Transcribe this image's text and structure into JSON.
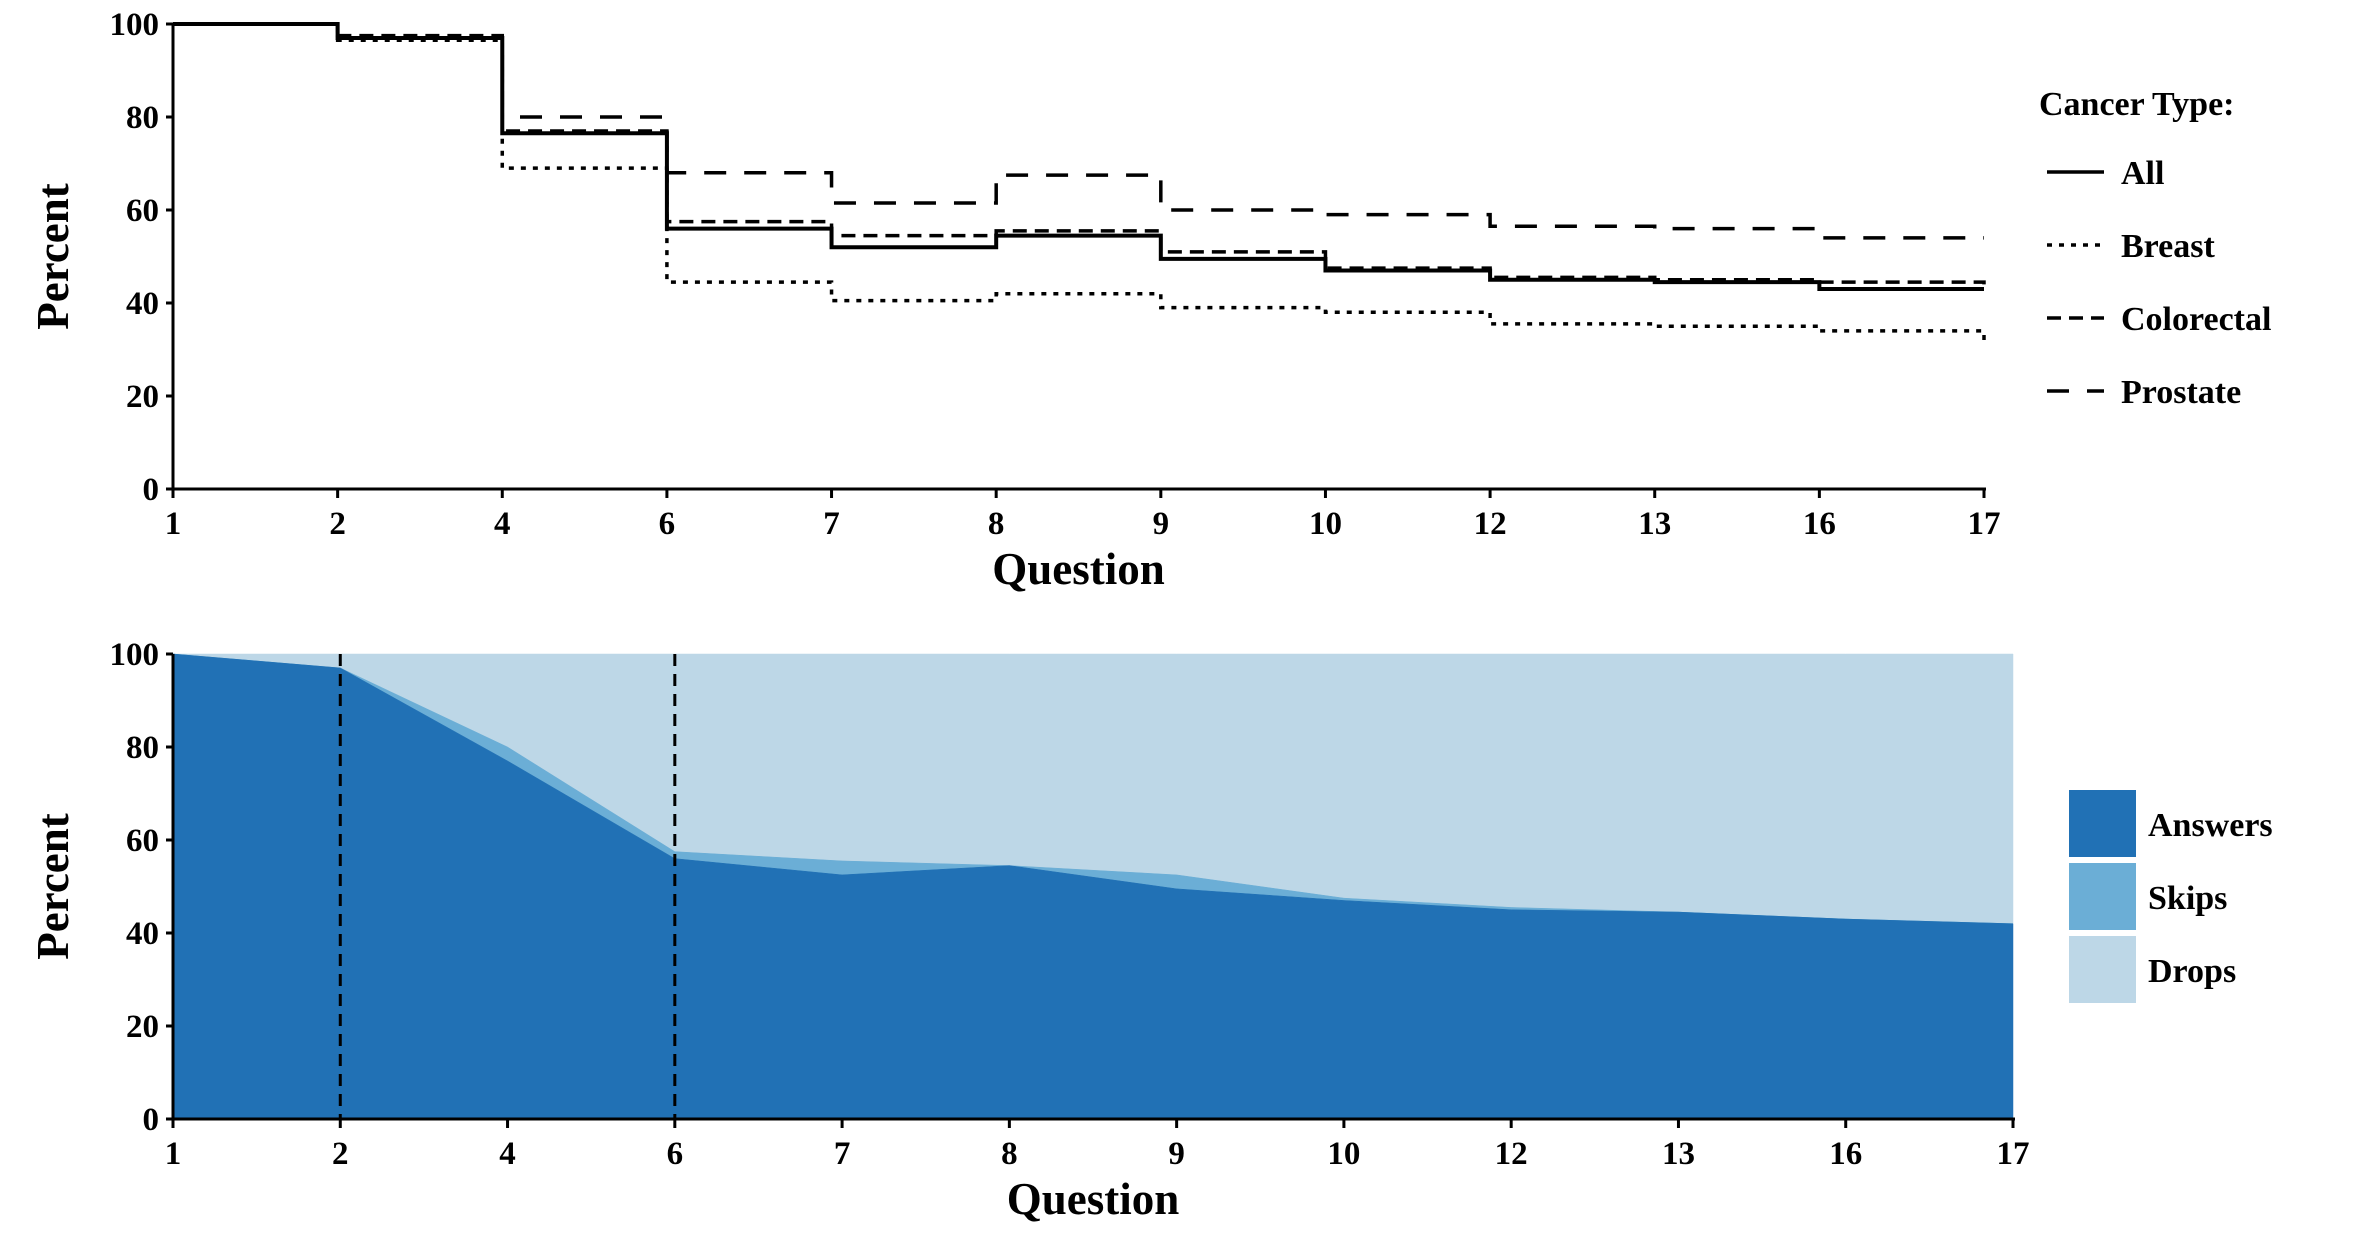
{
  "chart_data": [
    {
      "type": "line",
      "step": true,
      "xlabel": "Question",
      "ylabel": "Percent",
      "categories": [
        "1",
        "2",
        "4",
        "6",
        "7",
        "8",
        "9",
        "10",
        "12",
        "13",
        "16",
        "17"
      ],
      "ylim": [
        0,
        100
      ],
      "yticks": [
        "0",
        "20",
        "40",
        "60",
        "80",
        "100"
      ],
      "legend_title": "Cancer Type:",
      "legend_position": "right",
      "series": [
        {
          "name": "All",
          "dash": "solid",
          "values": [
            100,
            97,
            76.5,
            56,
            52,
            54.5,
            49.5,
            47,
            45,
            44.5,
            43,
            43
          ]
        },
        {
          "name": "Breast",
          "dash": "dotted",
          "values": [
            100,
            96.5,
            69,
            44.5,
            40.5,
            42,
            39,
            38,
            35.5,
            35,
            34,
            32
          ]
        },
        {
          "name": "Colorectal",
          "dash": "dashed",
          "values": [
            100,
            97.5,
            77,
            57.5,
            54.5,
            55.5,
            51,
            47.5,
            45.5,
            45,
            44.5,
            44
          ]
        },
        {
          "name": "Prostate",
          "dash": "longdash",
          "values": [
            100,
            97,
            80,
            68,
            61.5,
            67.5,
            60,
            59,
            56.5,
            56,
            54,
            54
          ]
        }
      ]
    },
    {
      "type": "area",
      "stacked": true,
      "xlabel": "Question",
      "ylabel": "Percent",
      "categories": [
        "1",
        "2",
        "4",
        "6",
        "7",
        "8",
        "9",
        "10",
        "12",
        "13",
        "16",
        "17"
      ],
      "ylim": [
        0,
        100
      ],
      "yticks": [
        "0",
        "20",
        "40",
        "60",
        "80",
        "100"
      ],
      "vlines_at": [
        "2",
        "6"
      ],
      "legend_position": "right",
      "series": [
        {
          "name": "Answers",
          "color": "#2171b5",
          "values": [
            100,
            97,
            77,
            56,
            52.5,
            54.5,
            49.5,
            47,
            45,
            44.5,
            43,
            42
          ]
        },
        {
          "name": "Skips",
          "color": "#6baed6",
          "values": [
            0,
            0,
            3,
            1.5,
            3,
            0,
            3,
            0.5,
            0.5,
            0,
            0,
            0
          ]
        },
        {
          "name": "Drops",
          "color": "#bdd7e7",
          "values": [
            0,
            3,
            20,
            42.5,
            44.5,
            45.5,
            47.5,
            52.5,
            54.5,
            55.5,
            57,
            58
          ]
        }
      ]
    }
  ]
}
